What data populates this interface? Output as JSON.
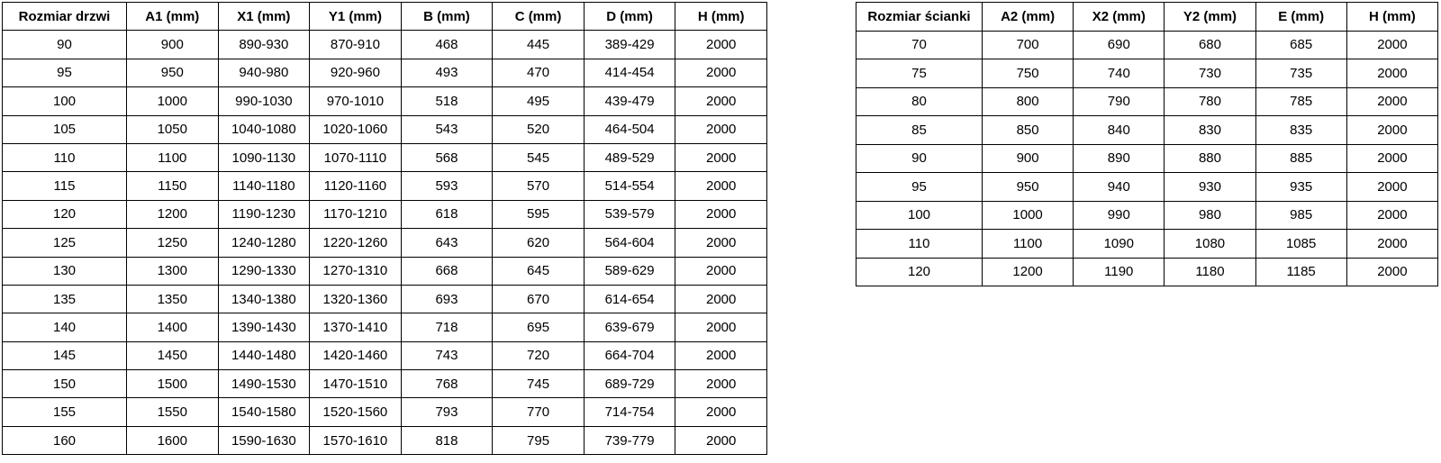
{
  "doors_table": {
    "headers": [
      "Rozmiar drzwi",
      "A1 (mm)",
      "X1 (mm)",
      "Y1 (mm)",
      "B (mm)",
      "C (mm)",
      "D (mm)",
      "H (mm)"
    ],
    "rows": [
      [
        "90",
        "900",
        "890-930",
        "870-910",
        "468",
        "445",
        "389-429",
        "2000"
      ],
      [
        "95",
        "950",
        "940-980",
        "920-960",
        "493",
        "470",
        "414-454",
        "2000"
      ],
      [
        "100",
        "1000",
        "990-1030",
        "970-1010",
        "518",
        "495",
        "439-479",
        "2000"
      ],
      [
        "105",
        "1050",
        "1040-1080",
        "1020-1060",
        "543",
        "520",
        "464-504",
        "2000"
      ],
      [
        "110",
        "1100",
        "1090-1130",
        "1070-1110",
        "568",
        "545",
        "489-529",
        "2000"
      ],
      [
        "115",
        "1150",
        "1140-1180",
        "1120-1160",
        "593",
        "570",
        "514-554",
        "2000"
      ],
      [
        "120",
        "1200",
        "1190-1230",
        "1170-1210",
        "618",
        "595",
        "539-579",
        "2000"
      ],
      [
        "125",
        "1250",
        "1240-1280",
        "1220-1260",
        "643",
        "620",
        "564-604",
        "2000"
      ],
      [
        "130",
        "1300",
        "1290-1330",
        "1270-1310",
        "668",
        "645",
        "589-629",
        "2000"
      ],
      [
        "135",
        "1350",
        "1340-1380",
        "1320-1360",
        "693",
        "670",
        "614-654",
        "2000"
      ],
      [
        "140",
        "1400",
        "1390-1430",
        "1370-1410",
        "718",
        "695",
        "639-679",
        "2000"
      ],
      [
        "145",
        "1450",
        "1440-1480",
        "1420-1460",
        "743",
        "720",
        "664-704",
        "2000"
      ],
      [
        "150",
        "1500",
        "1490-1530",
        "1470-1510",
        "768",
        "745",
        "689-729",
        "2000"
      ],
      [
        "155",
        "1550",
        "1540-1580",
        "1520-1560",
        "793",
        "770",
        "714-754",
        "2000"
      ],
      [
        "160",
        "1600",
        "1590-1630",
        "1570-1610",
        "818",
        "795",
        "739-779",
        "2000"
      ]
    ]
  },
  "walls_table": {
    "headers": [
      "Rozmiar ścianki",
      "A2 (mm)",
      "X2 (mm)",
      "Y2 (mm)",
      "E (mm)",
      "H (mm)"
    ],
    "rows": [
      [
        "70",
        "700",
        "690",
        "680",
        "685",
        "2000"
      ],
      [
        "75",
        "750",
        "740",
        "730",
        "735",
        "2000"
      ],
      [
        "80",
        "800",
        "790",
        "780",
        "785",
        "2000"
      ],
      [
        "85",
        "850",
        "840",
        "830",
        "835",
        "2000"
      ],
      [
        "90",
        "900",
        "890",
        "880",
        "885",
        "2000"
      ],
      [
        "95",
        "950",
        "940",
        "930",
        "935",
        "2000"
      ],
      [
        "100",
        "1000",
        "990",
        "980",
        "985",
        "2000"
      ],
      [
        "110",
        "1100",
        "1090",
        "1080",
        "1085",
        "2000"
      ],
      [
        "120",
        "1200",
        "1190",
        "1180",
        "1185",
        "2000"
      ]
    ]
  }
}
